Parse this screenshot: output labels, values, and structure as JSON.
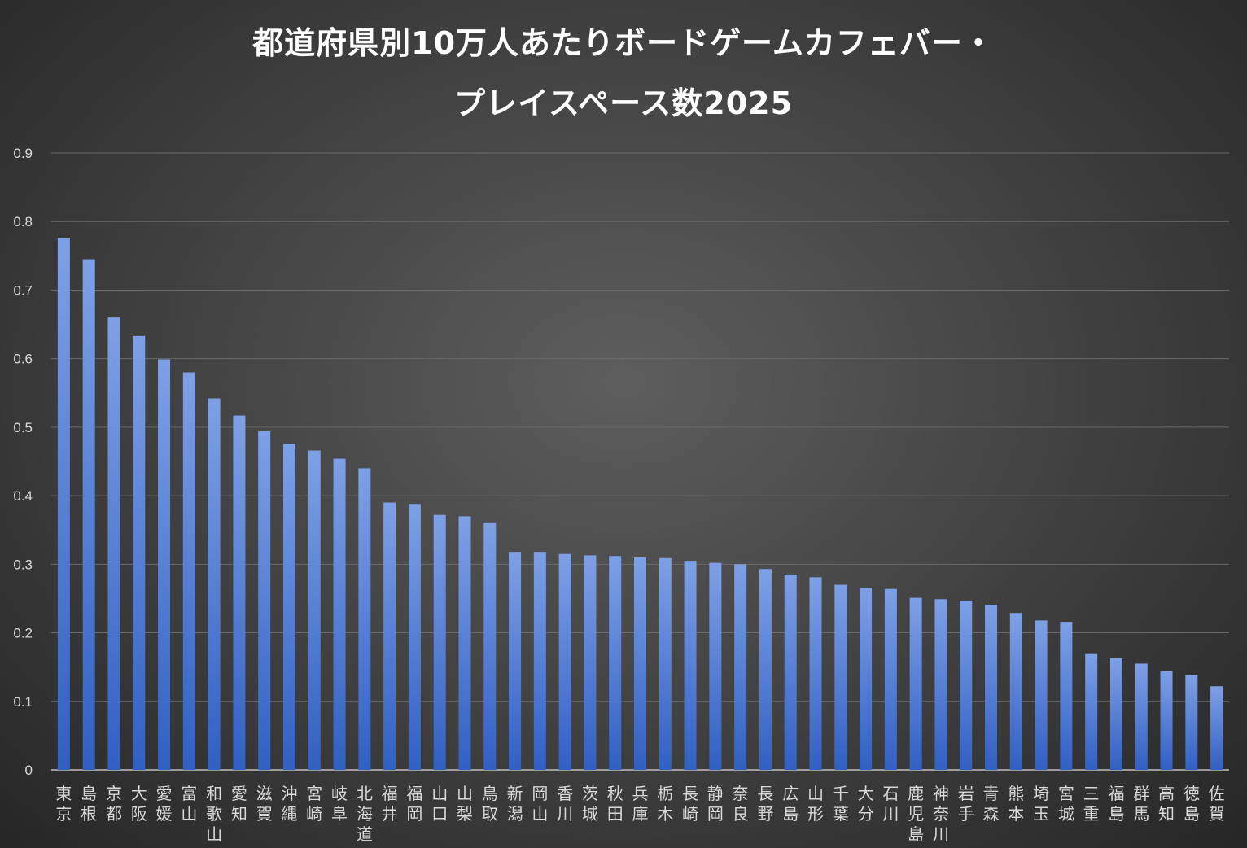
{
  "title": {
    "line1": "都道府県別10万人あたりボードゲームカフェバー・",
    "line2": "プレイスペース数2025"
  },
  "colors": {
    "bar_top": "#7ea0e6",
    "bar_bottom": "#3160c4",
    "grid": "#6a6a6a",
    "axis": "#bfbfbf"
  },
  "chart_data": {
    "type": "bar",
    "title": "都道府県別10万人あたりボードゲームカフェバー・プレイスペース数2025",
    "xlabel": "",
    "ylabel": "",
    "ylim": [
      0,
      0.9
    ],
    "yticks": [
      "0",
      "0.1",
      "0.2",
      "0.3",
      "0.4",
      "0.5",
      "0.6",
      "0.7",
      "0.8",
      "0.9"
    ],
    "grid": true,
    "categories": [
      "東京",
      "島根",
      "京都",
      "大阪",
      "愛媛",
      "富山",
      "和歌山",
      "愛知",
      "滋賀",
      "沖縄",
      "宮崎",
      "岐阜",
      "北海道",
      "福井",
      "福岡",
      "山口",
      "山梨",
      "鳥取",
      "新潟",
      "岡山",
      "香川",
      "茨城",
      "秋田",
      "兵庫",
      "栃木",
      "長崎",
      "静岡",
      "奈良",
      "長野",
      "広島",
      "山形",
      "千葉",
      "大分",
      "石川",
      "鹿児島",
      "神奈川",
      "岩手",
      "青森",
      "熊本",
      "埼玉",
      "宮城",
      "三重",
      "福島",
      "群馬",
      "高知",
      "徳島",
      "佐賀"
    ],
    "values": [
      0.776,
      0.745,
      0.66,
      0.633,
      0.599,
      0.58,
      0.542,
      0.517,
      0.494,
      0.476,
      0.466,
      0.454,
      0.44,
      0.39,
      0.388,
      0.372,
      0.37,
      0.36,
      0.318,
      0.318,
      0.315,
      0.313,
      0.312,
      0.31,
      0.309,
      0.305,
      0.302,
      0.3,
      0.293,
      0.285,
      0.281,
      0.27,
      0.266,
      0.264,
      0.251,
      0.249,
      0.247,
      0.241,
      0.229,
      0.218,
      0.216,
      0.169,
      0.163,
      0.155,
      0.144,
      0.138,
      0.122
    ]
  }
}
